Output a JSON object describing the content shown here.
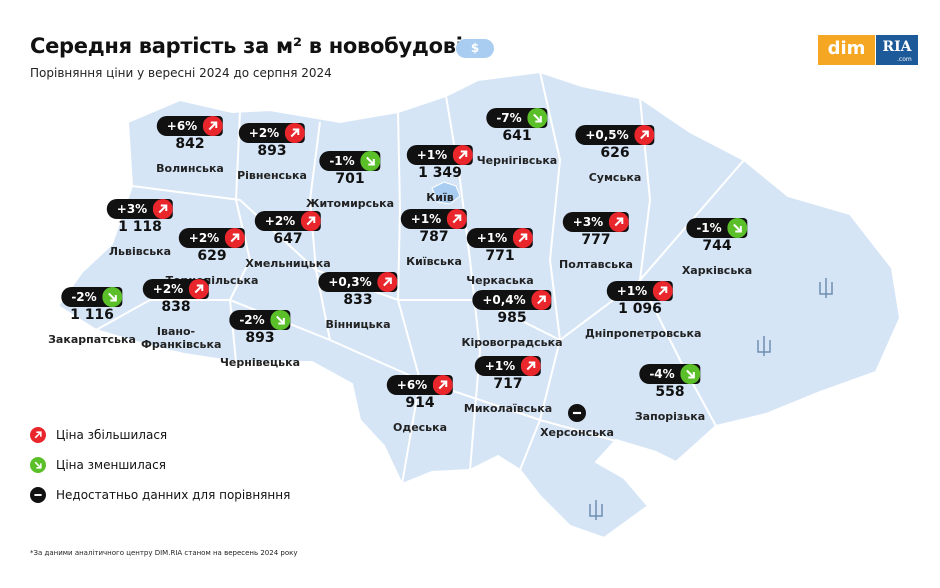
{
  "header": {
    "title": "Середня вартість за м² в новобудові",
    "currency": "$",
    "subtitle": "Порівняння ціни у вересні 2024 до серпня 2024",
    "logo": {
      "dim": "dim",
      "ria": "RIA",
      "domain": ".com"
    }
  },
  "regions": [
    {
      "name": "Волинська",
      "price": "842",
      "change": "+6%"
    },
    {
      "name": "Рівненська",
      "price": "893",
      "change": "+2%"
    },
    {
      "name": "Житомирська",
      "price": "701",
      "change": "-1%"
    },
    {
      "name": "Київ",
      "price": "1 349",
      "change": "+1%"
    },
    {
      "name": "Чернігівська",
      "price": "641",
      "change": "-7%"
    },
    {
      "name": "Сумська",
      "price": "626",
      "change": "+0,5%"
    },
    {
      "name": "Львівська",
      "price": "1 118",
      "change": "+3%"
    },
    {
      "name": "Хмельницька",
      "price": "647",
      "change": "+2%"
    },
    {
      "name": "Тернопільська",
      "price": "629",
      "change": "+2%"
    },
    {
      "name": "Київська",
      "price": "787",
      "change": "+1%"
    },
    {
      "name": "Черкаська",
      "price": "771",
      "change": "+1%"
    },
    {
      "name": "Полтавська",
      "price": "777",
      "change": "+3%"
    },
    {
      "name": "Харківська",
      "price": "744",
      "change": "-1%"
    },
    {
      "name": "Закарпатська",
      "price": "1 116",
      "change": "-2%"
    },
    {
      "name": "Івано-Франківська",
      "price": "838",
      "change": "+2%"
    },
    {
      "name": "Вінницька",
      "price": "833",
      "change": "+0,3%"
    },
    {
      "name": "Кіровоградська",
      "price": "985",
      "change": "+0,4%"
    },
    {
      "name": "Дніпропетровська",
      "price": "1 096",
      "change": "+1%"
    },
    {
      "name": "Чернівецька",
      "price": "893",
      "change": "-2%"
    },
    {
      "name": "Одеська",
      "price": "914",
      "change": "+6%"
    },
    {
      "name": "Миколаївська",
      "price": "717",
      "change": "+1%"
    },
    {
      "name": "Запорізька",
      "price": "558",
      "change": "-4%"
    },
    {
      "name": "Херсонська"
    }
  ],
  "legend": [
    {
      "label": "Ціна збільшилася",
      "kind": "up"
    },
    {
      "label": "Ціна зменшилася",
      "kind": "down"
    },
    {
      "label": "Недостатньо данних для порівняння",
      "kind": "none"
    }
  ],
  "footnote": "*За даними аналітичного центру DIM.RIA станом на вересень 2024 року"
}
